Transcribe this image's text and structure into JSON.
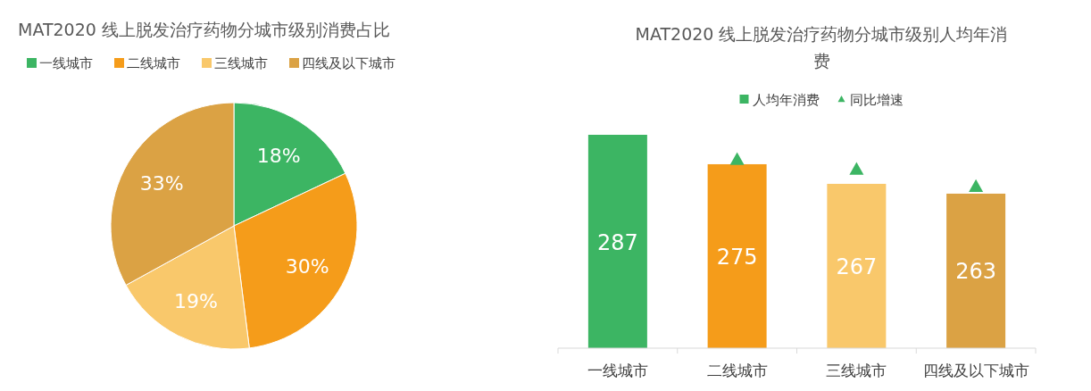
{
  "chart_data": [
    {
      "type": "pie",
      "title": "MAT2020 线上脱发治疗药物分城市级别消费占比",
      "categories": [
        "一线城市",
        "二线城市",
        "三线城市",
        "四线及以下城市"
      ],
      "values": [
        18,
        30,
        19,
        33
      ],
      "colors": [
        "#3cb563",
        "#f59c1a",
        "#f9c86b",
        "#dba244"
      ],
      "legend": "top",
      "value_labels": [
        "18%",
        "30%",
        "19%",
        "33%"
      ]
    },
    {
      "type": "bar",
      "title": "MAT2020 线上脱发治疗药物分城市级别人均年消费",
      "categories": [
        "一线城市",
        "二线城市",
        "三线城市",
        "四线及以下城市"
      ],
      "ylim": [
        200,
        287
      ],
      "legend": "top",
      "series": [
        {
          "name": "人均年消费",
          "type": "bar",
          "colors": [
            "#3cb563",
            "#f59c1a",
            "#f9c86b",
            "#dba244"
          ],
          "color": "#3cb563",
          "values": [
            287,
            275,
            267,
            263
          ],
          "value_labels": [
            "287",
            "275",
            "267",
            "263"
          ]
        },
        {
          "name": "同比增速",
          "type": "scatter",
          "marker": "triangle",
          "color": "#3cb563",
          "values": [
            null,
            277,
            273,
            266
          ]
        }
      ]
    }
  ]
}
